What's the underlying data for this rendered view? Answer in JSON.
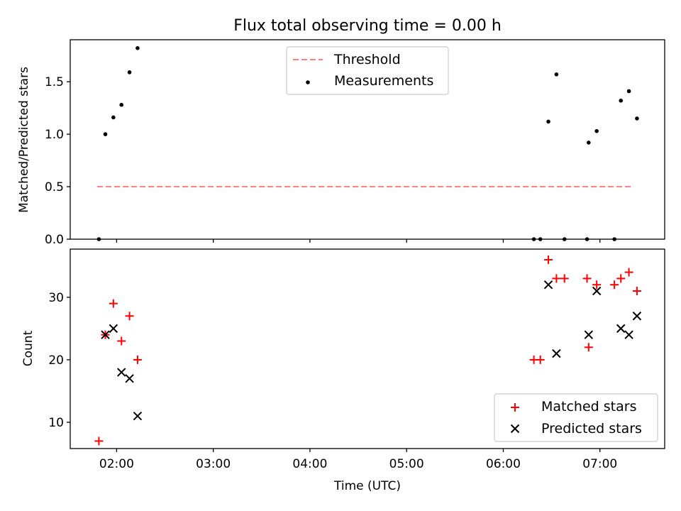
{
  "chart_data": [
    {
      "type": "scatter",
      "title": "Flux total observing time = 0.00 h",
      "ylabel": "Matched/Predicted stars",
      "ylim": [
        0,
        1.9
      ],
      "yticks": [
        0.0,
        0.5,
        1.0,
        1.5
      ],
      "ytick_labels": [
        "0.0",
        "0.5",
        "1.0",
        "1.5"
      ],
      "xlim_hours": [
        1.52,
        7.67
      ],
      "legend_position": "upper center",
      "threshold": {
        "name": "Threshold",
        "y": 0.5,
        "x_start": "01:48",
        "x_end": "07:21",
        "color": "#ff7f7f",
        "style": "dashed"
      },
      "series": [
        {
          "name": "Measurements",
          "color": "#000000",
          "marker": "dot",
          "points": [
            {
              "x": "01:49",
              "y": 0.0
            },
            {
              "x": "01:53",
              "y": 1.0
            },
            {
              "x": "01:58",
              "y": 1.16
            },
            {
              "x": "02:03",
              "y": 1.28
            },
            {
              "x": "02:08",
              "y": 1.59
            },
            {
              "x": "02:13",
              "y": 1.82
            },
            {
              "x": "06:19",
              "y": 0.0
            },
            {
              "x": "06:23",
              "y": 0.0
            },
            {
              "x": "06:28",
              "y": 1.12
            },
            {
              "x": "06:33",
              "y": 1.57
            },
            {
              "x": "06:38",
              "y": 0.0
            },
            {
              "x": "06:52",
              "y": 0.0
            },
            {
              "x": "06:53",
              "y": 0.92
            },
            {
              "x": "06:58",
              "y": 1.03
            },
            {
              "x": "07:09",
              "y": 0.0
            },
            {
              "x": "07:13",
              "y": 1.32
            },
            {
              "x": "07:18",
              "y": 1.41
            },
            {
              "x": "07:23",
              "y": 1.15
            }
          ]
        }
      ]
    },
    {
      "type": "scatter",
      "xlabel": "Time (UTC)",
      "ylabel": "Count",
      "ylim": [
        5.8,
        37.7
      ],
      "yticks": [
        10,
        20,
        30
      ],
      "ytick_labels": [
        "10",
        "20",
        "30"
      ],
      "xlim_hours": [
        1.52,
        7.67
      ],
      "xticks": [
        "02:00",
        "03:00",
        "04:00",
        "05:00",
        "06:00",
        "07:00"
      ],
      "legend_position": "lower right",
      "series": [
        {
          "name": "Matched stars",
          "color": "#ff0000",
          "marker": "plus",
          "points": [
            {
              "x": "01:49",
              "y": 7
            },
            {
              "x": "01:53",
              "y": 24
            },
            {
              "x": "01:58",
              "y": 29
            },
            {
              "x": "02:03",
              "y": 23
            },
            {
              "x": "02:08",
              "y": 27
            },
            {
              "x": "02:13",
              "y": 20
            },
            {
              "x": "06:19",
              "y": 20
            },
            {
              "x": "06:23",
              "y": 20
            },
            {
              "x": "06:28",
              "y": 36
            },
            {
              "x": "06:33",
              "y": 33
            },
            {
              "x": "06:38",
              "y": 33
            },
            {
              "x": "06:52",
              "y": 33
            },
            {
              "x": "06:53",
              "y": 22
            },
            {
              "x": "06:58",
              "y": 32
            },
            {
              "x": "07:09",
              "y": 32
            },
            {
              "x": "07:13",
              "y": 33
            },
            {
              "x": "07:18",
              "y": 34
            },
            {
              "x": "07:23",
              "y": 31
            }
          ]
        },
        {
          "name": "Predicted stars",
          "color": "#000000",
          "marker": "x",
          "points": [
            {
              "x": "01:53",
              "y": 24
            },
            {
              "x": "01:58",
              "y": 25
            },
            {
              "x": "02:03",
              "y": 18
            },
            {
              "x": "02:08",
              "y": 17
            },
            {
              "x": "02:13",
              "y": 11
            },
            {
              "x": "06:28",
              "y": 32
            },
            {
              "x": "06:33",
              "y": 21
            },
            {
              "x": "06:53",
              "y": 24
            },
            {
              "x": "06:58",
              "y": 31
            },
            {
              "x": "07:13",
              "y": 25
            },
            {
              "x": "07:18",
              "y": 24
            },
            {
              "x": "07:23",
              "y": 27
            }
          ]
        }
      ]
    }
  ]
}
